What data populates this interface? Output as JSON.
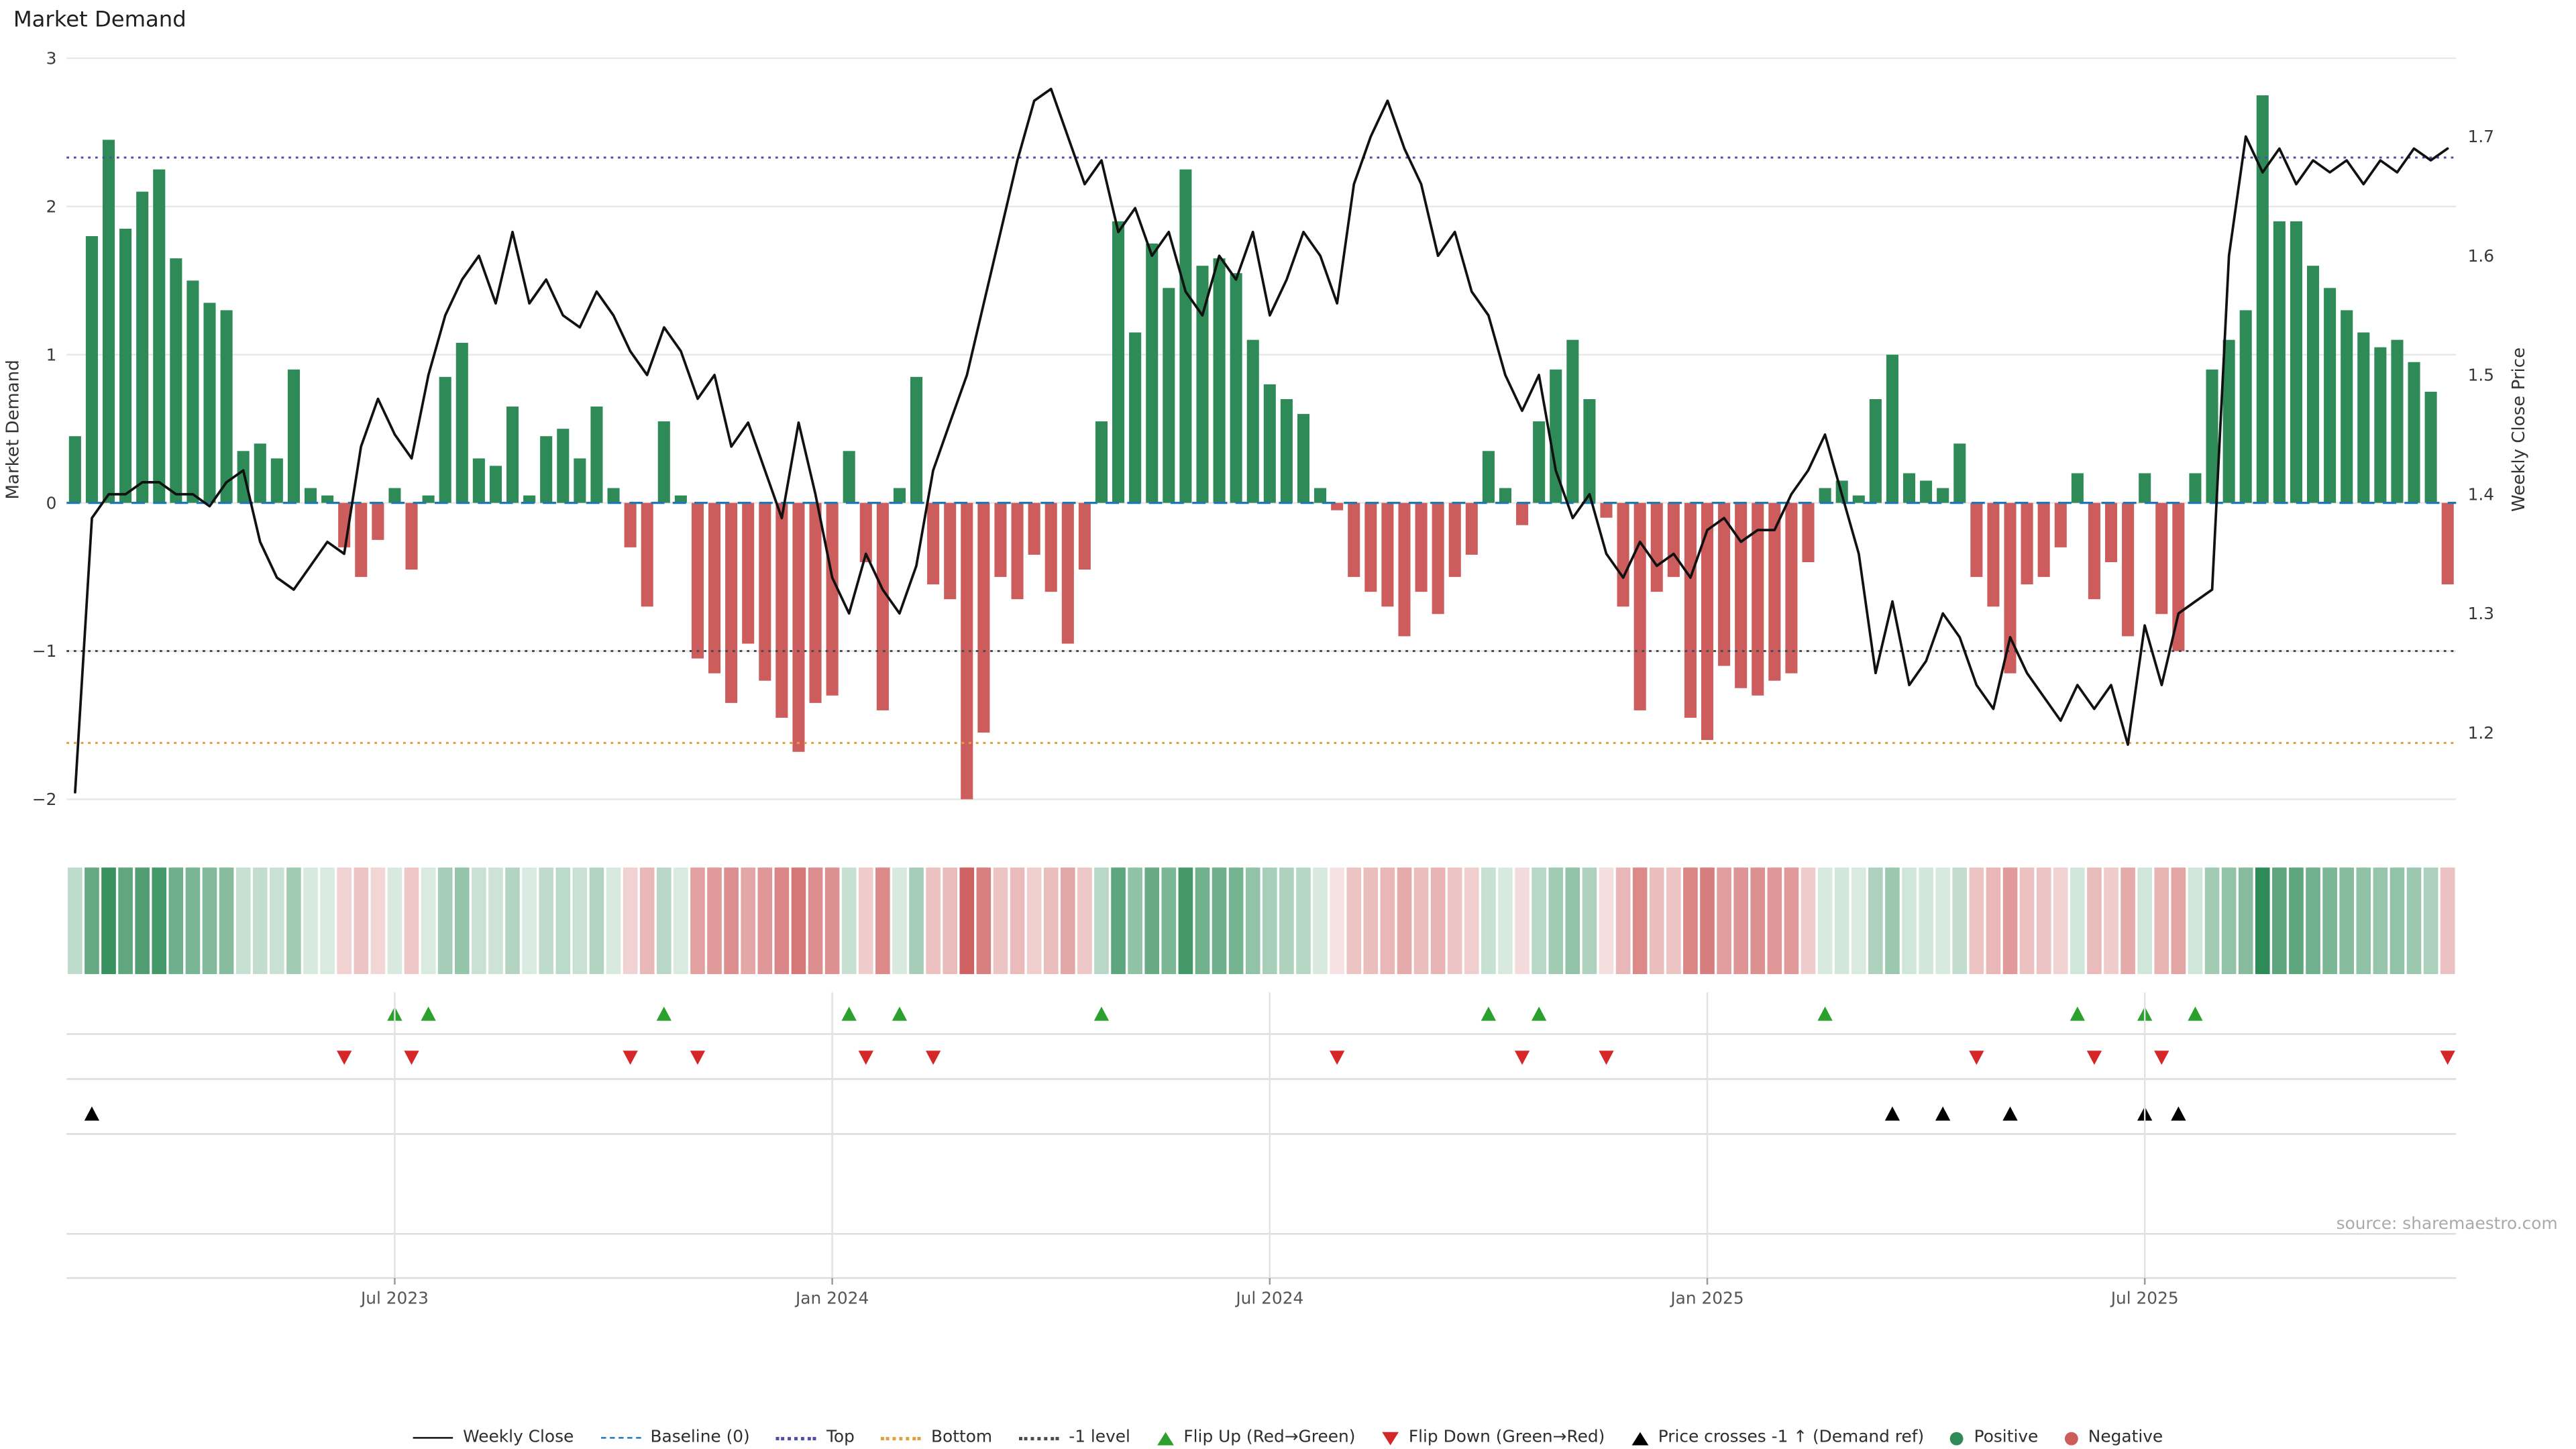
{
  "meta": {
    "title": "Market Demand",
    "source": "source: sharemaestro.com"
  },
  "chart_data": {
    "type": "bar",
    "title": "Market Demand",
    "x_axis": {
      "tick_labels": [
        "Jul 2023",
        "Jan 2024",
        "Jul 2024",
        "Jan 2025",
        "Jul 2025"
      ],
      "tick_weeks": [
        19,
        45,
        71,
        97,
        123
      ],
      "n_weeks": 142
    },
    "left_axis": {
      "label": "Market Demand",
      "ticks": [
        "3",
        "2",
        "1",
        "0",
        "−1",
        "−2"
      ],
      "tick_values": [
        3,
        2,
        1,
        0,
        -1,
        -2
      ],
      "range": [
        -2.05,
        3.0
      ]
    },
    "right_axis": {
      "label": "Weekly Close Price",
      "ticks": [
        "1.7",
        "1.6",
        "1.5",
        "1.4",
        "1.3",
        "1.2"
      ],
      "tick_values": [
        1.7,
        1.6,
        1.5,
        1.4,
        1.3,
        1.2
      ]
    },
    "reference_lines": {
      "baseline": 0,
      "top": 2.33,
      "bottom": -1.62,
      "minus_one_level": -1
    },
    "series": [
      {
        "name": "Market Demand",
        "type": "bar",
        "values": [
          0.45,
          1.8,
          2.45,
          1.85,
          2.1,
          2.25,
          1.65,
          1.5,
          1.35,
          1.3,
          0.35,
          0.4,
          0.3,
          0.9,
          0.1,
          0.05,
          -0.3,
          -0.5,
          -0.25,
          0.1,
          -0.45,
          0.05,
          0.85,
          1.08,
          0.3,
          0.25,
          0.65,
          0.05,
          0.45,
          0.5,
          0.3,
          0.65,
          0.1,
          -0.3,
          -0.7,
          0.55,
          0.05,
          -1.05,
          -1.15,
          -1.35,
          -0.95,
          -1.2,
          -1.45,
          -1.68,
          -1.35,
          -1.3,
          0.35,
          -0.4,
          -1.4,
          0.1,
          0.85,
          -0.55,
          -0.65,
          -2.0,
          -1.55,
          -0.5,
          -0.65,
          -0.35,
          -0.6,
          -0.95,
          -0.45,
          0.55,
          1.9,
          1.15,
          1.75,
          1.45,
          2.25,
          1.6,
          1.65,
          1.55,
          1.1,
          0.8,
          0.7,
          0.6,
          0.1,
          -0.05,
          -0.5,
          -0.6,
          -0.7,
          -0.9,
          -0.6,
          -0.75,
          -0.5,
          -0.35,
          0.35,
          0.1,
          -0.15,
          0.55,
          0.9,
          1.1,
          0.7,
          -0.1,
          -0.7,
          -1.4,
          -0.6,
          -0.5,
          -1.45,
          -1.6,
          -1.1,
          -1.25,
          -1.3,
          -1.2,
          -1.15,
          -0.4,
          0.1,
          0.15,
          0.05,
          0.7,
          1.0,
          0.2,
          0.15,
          0.1,
          0.4,
          -0.5,
          -0.7,
          -1.15,
          -0.55,
          -0.5,
          -0.3,
          0.2,
          -0.65,
          -0.4,
          -0.9,
          0.2,
          -0.75,
          -1.0,
          0.2,
          0.9,
          1.1,
          1.3,
          2.75,
          1.9,
          1.9,
          1.6,
          1.45,
          1.3,
          1.15,
          1.05,
          1.1,
          0.95,
          0.75,
          -0.55
        ]
      },
      {
        "name": "Weekly Close",
        "type": "line",
        "values": [
          1.15,
          1.38,
          1.4,
          1.4,
          1.41,
          1.41,
          1.4,
          1.4,
          1.39,
          1.41,
          1.42,
          1.36,
          1.33,
          1.32,
          1.34,
          1.36,
          1.35,
          1.44,
          1.48,
          1.45,
          1.43,
          1.5,
          1.55,
          1.58,
          1.6,
          1.56,
          1.62,
          1.56,
          1.58,
          1.55,
          1.54,
          1.57,
          1.55,
          1.52,
          1.5,
          1.54,
          1.52,
          1.48,
          1.5,
          1.44,
          1.46,
          1.42,
          1.38,
          1.46,
          1.4,
          1.33,
          1.3,
          1.35,
          1.32,
          1.3,
          1.34,
          1.42,
          1.46,
          1.5,
          1.56,
          1.62,
          1.68,
          1.73,
          1.74,
          1.7,
          1.66,
          1.68,
          1.62,
          1.64,
          1.6,
          1.62,
          1.57,
          1.55,
          1.6,
          1.58,
          1.62,
          1.55,
          1.58,
          1.62,
          1.6,
          1.56,
          1.66,
          1.7,
          1.73,
          1.69,
          1.66,
          1.6,
          1.62,
          1.57,
          1.55,
          1.5,
          1.47,
          1.5,
          1.42,
          1.38,
          1.4,
          1.35,
          1.33,
          1.36,
          1.34,
          1.35,
          1.33,
          1.37,
          1.38,
          1.36,
          1.37,
          1.37,
          1.4,
          1.42,
          1.45,
          1.4,
          1.35,
          1.25,
          1.31,
          1.24,
          1.26,
          1.3,
          1.28,
          1.24,
          1.22,
          1.28,
          1.25,
          1.23,
          1.21,
          1.24,
          1.22,
          1.24,
          1.19,
          1.29,
          1.24,
          1.3,
          1.31,
          1.32,
          1.6,
          1.7,
          1.67,
          1.69,
          1.66,
          1.68,
          1.67,
          1.68,
          1.66,
          1.68,
          1.67,
          1.69,
          1.68,
          1.69
        ]
      }
    ],
    "markers": {
      "flip_up_weeks": [
        19,
        21,
        35,
        46,
        49,
        61,
        84,
        87,
        104,
        119,
        123,
        126
      ],
      "flip_down_weeks": [
        16,
        20,
        33,
        37,
        47,
        51,
        75,
        86,
        91,
        113,
        120,
        124,
        141
      ],
      "price_cross_weeks": [
        1,
        108,
        111,
        115,
        123,
        125
      ]
    },
    "colors": {
      "positive": "#2e8b57",
      "negative": "#cd5c5c",
      "price_line": "#111111",
      "baseline": "#1f77b4",
      "top": "#4e4ea8",
      "bottom": "#e1a03c",
      "minus_one": "#4a4a55",
      "flip_up": "#2ca02c",
      "flip_down": "#d62728",
      "price_cross": "#000000",
      "grid": "#e8e8e8"
    }
  },
  "legend": {
    "items": [
      {
        "label": "Weekly Close",
        "type": "line",
        "color": "#111111"
      },
      {
        "label": "Baseline (0)",
        "type": "dashed",
        "color": "#1f77b4"
      },
      {
        "label": "Top",
        "type": "dotted",
        "color": "#4e4ea8"
      },
      {
        "label": "Bottom",
        "type": "dotted",
        "color": "#e1a03c"
      },
      {
        "label": "-1 level",
        "type": "dotted",
        "color": "#4a4a55"
      },
      {
        "label": "Flip Up (Red→Green)",
        "type": "triangle-up",
        "color": "#2ca02c"
      },
      {
        "label": "Flip Down (Green→Red)",
        "type": "triangle-down",
        "color": "#d62728"
      },
      {
        "label": "Price crosses -1 ↑ (Demand ref)",
        "type": "triangle-up",
        "color": "#000000"
      },
      {
        "label": "Positive",
        "type": "dot",
        "color": "#2e8b57"
      },
      {
        "label": "Negative",
        "type": "dot",
        "color": "#cd5c5c"
      }
    ]
  }
}
